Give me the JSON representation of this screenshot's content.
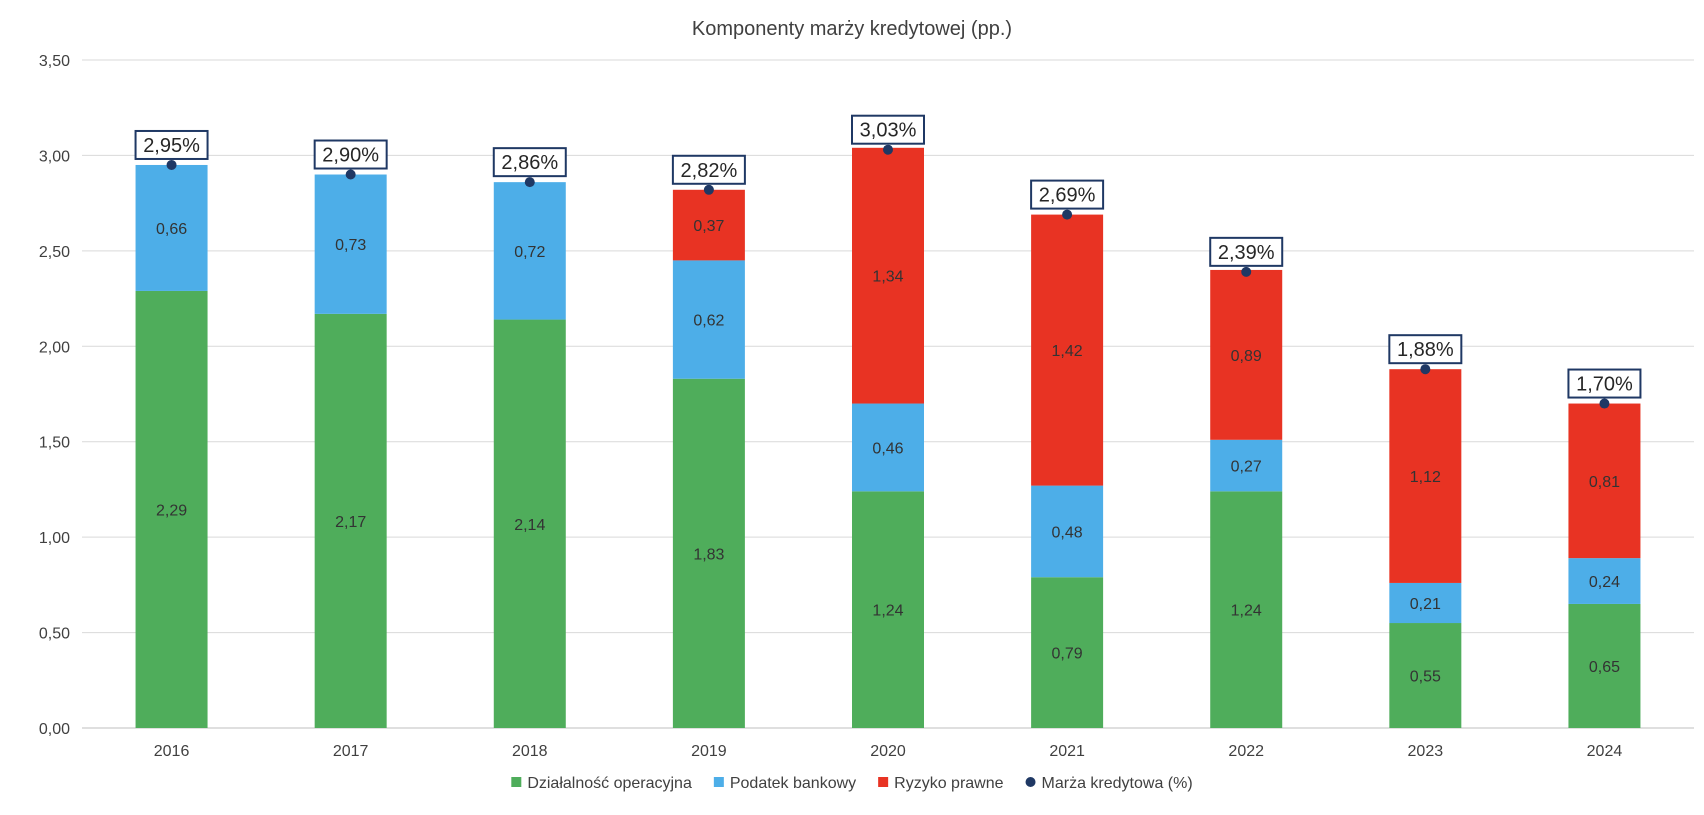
{
  "chart_data": {
    "type": "bar",
    "stacked": true,
    "title": "Komponenty marży kredytowej (pp.)",
    "xlabel": "",
    "ylabel": "",
    "ylim": [
      0,
      3.5
    ],
    "yticks": [
      "0,00",
      "0,50",
      "1,00",
      "1,50",
      "2,00",
      "2,50",
      "3,00",
      "3,50"
    ],
    "grid": true,
    "legend_position": "bottom",
    "categories": [
      "2016",
      "2017",
      "2018",
      "2019",
      "2020",
      "2021",
      "2022",
      "2023",
      "2024"
    ],
    "series": [
      {
        "name": "Działalność operacyjna",
        "color": "#4fad5b",
        "values": [
          2.29,
          2.17,
          2.14,
          1.83,
          1.24,
          0.79,
          1.24,
          0.55,
          0.65
        ],
        "labels": [
          "2,29",
          "2,17",
          "2,14",
          "1,83",
          "1,24",
          "0,79",
          "1,24",
          "0,55",
          "0,65"
        ]
      },
      {
        "name": "Podatek bankowy",
        "color": "#4daee8",
        "values": [
          0.66,
          0.73,
          0.72,
          0.62,
          0.46,
          0.48,
          0.27,
          0.21,
          0.24
        ],
        "labels": [
          "0,66",
          "0,73",
          "0,72",
          "0,62",
          "0,46",
          "0,48",
          "0,27",
          "0,21",
          "0,24"
        ]
      },
      {
        "name": "Ryzyko prawne",
        "color": "#e83323",
        "values": [
          0,
          0,
          0,
          0.37,
          1.34,
          1.42,
          0.89,
          1.12,
          0.81
        ],
        "labels": [
          "",
          "",
          "",
          "0,37",
          "1,34",
          "1,42",
          "0,89",
          "1,12",
          "0,81"
        ]
      }
    ],
    "line_series": {
      "name": "Marża kredytowa (%)",
      "color": "#1f3864",
      "values": [
        2.95,
        2.9,
        2.86,
        2.82,
        3.03,
        2.69,
        2.39,
        1.88,
        1.7
      ],
      "labels": [
        "2,95%",
        "2,90%",
        "2,86%",
        "2,82%",
        "3,03%",
        "2,69%",
        "2,39%",
        "1,88%",
        "1,70%"
      ]
    }
  }
}
